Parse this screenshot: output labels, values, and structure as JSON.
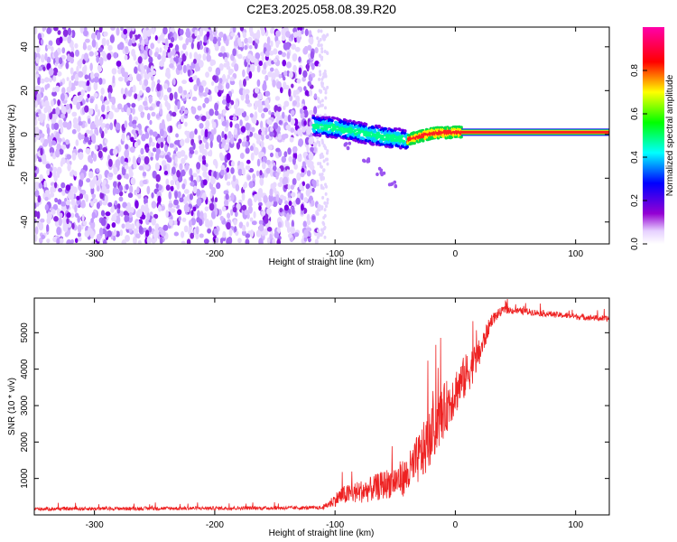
{
  "title": "C2E3.2025.058.08.39.R20",
  "chart_data": [
    {
      "type": "heatmap",
      "xlabel": "Height of straight line (km)",
      "ylabel": "Frequency (Hz)",
      "xlim": [
        -350,
        128
      ],
      "ylim": [
        -50,
        49
      ],
      "xticks": [
        -300,
        -200,
        -100,
        0,
        100
      ],
      "yticks": [
        -40,
        -20,
        0,
        20,
        40
      ],
      "colorbar": {
        "label": "Normalized spectral amplitude",
        "range": [
          0,
          1
        ],
        "ticks": [
          0.0,
          0.2,
          0.4,
          0.6,
          0.8
        ],
        "tick_labels": [
          "0.0",
          "0.2",
          "0.4",
          "0.6",
          "0.8"
        ],
        "colormap": [
          "#ffffff",
          "#9400d3",
          "#0000ff",
          "#00ffff",
          "#00ff00",
          "#ffff00",
          "#ff0000",
          "#ff00aa"
        ]
      },
      "noise_region_x": [
        -350,
        -115
      ],
      "echo_track": [
        {
          "x": -118,
          "y": 4
        },
        {
          "x": -100,
          "y": 3
        },
        {
          "x": -80,
          "y": 1
        },
        {
          "x": -60,
          "y": -1
        },
        {
          "x": -40,
          "y": -2.5
        },
        {
          "x": -20,
          "y": 0.5
        },
        {
          "x": 0,
          "y": 1
        },
        {
          "x": 5,
          "y": 1
        },
        {
          "x": 128,
          "y": 0.5
        }
      ],
      "faint_tail": [
        {
          "x": -90,
          "y": -5
        },
        {
          "x": -75,
          "y": -11
        },
        {
          "x": -62,
          "y": -17
        },
        {
          "x": -52,
          "y": -23
        }
      ]
    },
    {
      "type": "line",
      "xlabel": "Height of straight line (km)",
      "ylabel": "SNR (10 * v/v)",
      "xlim": [
        -350,
        128
      ],
      "ylim": [
        0,
        5950
      ],
      "xticks": [
        -300,
        -200,
        -100,
        0,
        100
      ],
      "yticks": [
        1000,
        2000,
        3000,
        4000,
        5000
      ],
      "series": [
        {
          "color": "#ee2222",
          "envelope": [
            {
              "x": -350,
              "base": 150,
              "amp": 100
            },
            {
              "x": -110,
              "base": 180,
              "amp": 100
            },
            {
              "x": -95,
              "base": 450,
              "amp": 500
            },
            {
              "x": -70,
              "base": 600,
              "amp": 700
            },
            {
              "x": -50,
              "base": 800,
              "amp": 900
            },
            {
              "x": -40,
              "base": 900,
              "amp": 1100
            },
            {
              "x": -25,
              "base": 1600,
              "amp": 1600
            },
            {
              "x": -10,
              "base": 2600,
              "amp": 1500
            },
            {
              "x": 0,
              "base": 3200,
              "amp": 1300
            },
            {
              "x": 10,
              "base": 3700,
              "amp": 1200
            },
            {
              "x": 20,
              "base": 4300,
              "amp": 800
            },
            {
              "x": 30,
              "base": 5300,
              "amp": 350
            },
            {
              "x": 40,
              "base": 5600,
              "amp": 200
            },
            {
              "x": 60,
              "base": 5550,
              "amp": 180
            },
            {
              "x": 90,
              "base": 5450,
              "amp": 160
            },
            {
              "x": 128,
              "base": 5350,
              "amp": 160
            }
          ]
        }
      ]
    }
  ]
}
